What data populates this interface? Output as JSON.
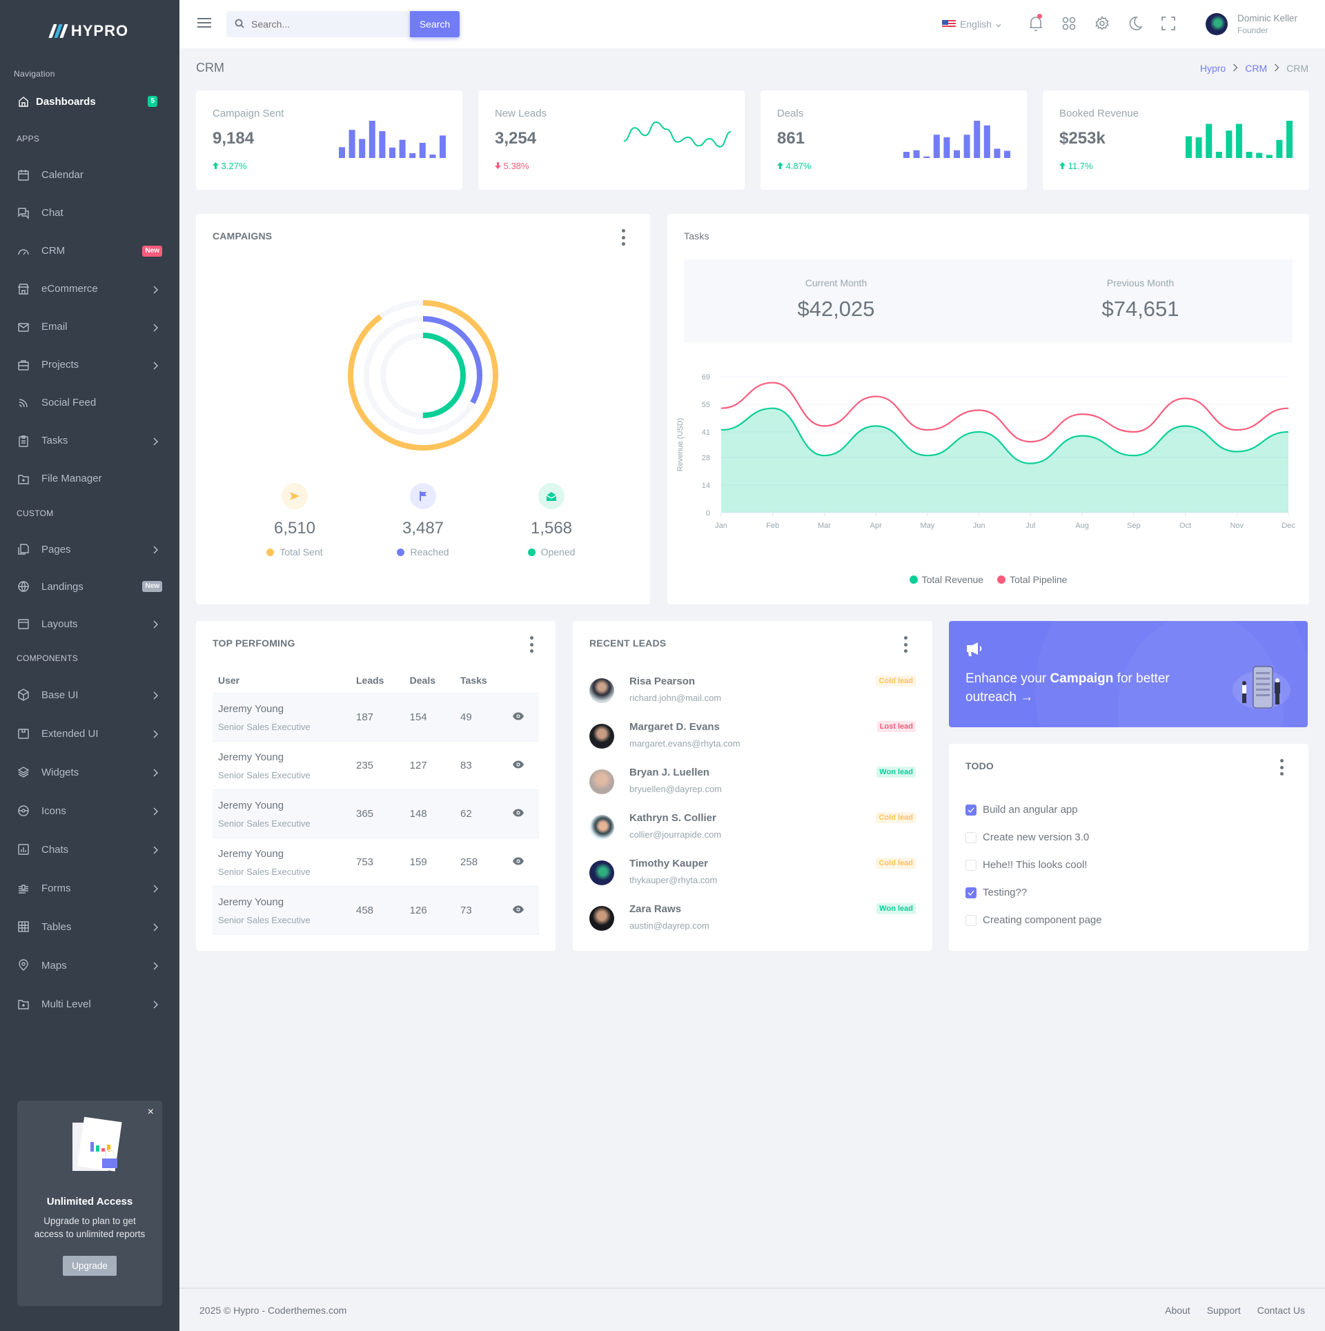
{
  "brand": {
    "name": "HYPRO"
  },
  "sidebar": {
    "navigation_title": "Navigation",
    "dashboards": {
      "label": "Dashboards",
      "badge": "5"
    },
    "sections": [
      {
        "title": "APPS",
        "items": [
          {
            "label": "Calendar",
            "icon": "calendar-icon"
          },
          {
            "label": "Chat",
            "icon": "chat-icon"
          },
          {
            "label": "CRM",
            "icon": "gauge-icon",
            "badge": "New"
          },
          {
            "label": "eCommerce",
            "icon": "store-icon",
            "chevron": true
          },
          {
            "label": "Email",
            "icon": "mail-icon",
            "chevron": true
          },
          {
            "label": "Projects",
            "icon": "briefcase-icon",
            "chevron": true
          },
          {
            "label": "Social Feed",
            "icon": "rss-icon"
          },
          {
            "label": "Tasks",
            "icon": "clipboard-icon",
            "chevron": true
          },
          {
            "label": "File Manager",
            "icon": "folder-plus-icon"
          }
        ]
      },
      {
        "title": "CUSTOM",
        "items": [
          {
            "label": "Pages",
            "icon": "pages-icon",
            "chevron": true
          },
          {
            "label": "Landings",
            "icon": "globe-icon",
            "badge": "New"
          },
          {
            "label": "Layouts",
            "icon": "layout-icon",
            "chevron": true
          }
        ]
      },
      {
        "title": "COMPONENTS",
        "items": [
          {
            "label": "Base UI",
            "icon": "cube-icon",
            "chevron": true
          },
          {
            "label": "Extended UI",
            "icon": "package-icon",
            "chevron": true
          },
          {
            "label": "Widgets",
            "icon": "layers-icon",
            "chevron": true
          },
          {
            "label": "Icons",
            "icon": "steering-icon",
            "chevron": true
          },
          {
            "label": "Chats",
            "icon": "bar-chart-icon",
            "chevron": true
          },
          {
            "label": "Forms",
            "icon": "forms-icon",
            "chevron": true
          },
          {
            "label": "Tables",
            "icon": "table-icon",
            "chevron": true
          },
          {
            "label": "Maps",
            "icon": "map-pin-icon",
            "chevron": true
          },
          {
            "label": "Multi Level",
            "icon": "folder-plus-icon",
            "chevron": true
          }
        ]
      }
    ],
    "promo": {
      "title": "Unlimited Access",
      "text": "Upgrade to plan to get access to unlimited reports",
      "button": "Upgrade",
      "close": "×"
    }
  },
  "topbar": {
    "search_placeholder": "Search...",
    "search_button": "Search",
    "language": "English",
    "user": {
      "name": "Dominic Keller",
      "role": "Founder"
    }
  },
  "page": {
    "title": "CRM",
    "breadcrumb": [
      "Hypro",
      "CRM",
      "CRM"
    ]
  },
  "stats": [
    {
      "title": "Campaign Sent",
      "value": "9,184",
      "change": "3.27%",
      "direction": "up",
      "spark_type": "bar",
      "color": "#727cf5",
      "spark": [
        25,
        65,
        44,
        86,
        62,
        24,
        42,
        11,
        35,
        8,
        52
      ]
    },
    {
      "title": "New Leads",
      "value": "3,254",
      "change": "5.38%",
      "direction": "down",
      "spark_type": "line",
      "color": "#0acf97",
      "spark": [
        30,
        58,
        42,
        70,
        55,
        28,
        38,
        20,
        35,
        18,
        50
      ]
    },
    {
      "title": "Deals",
      "value": "861",
      "change": "4.87%",
      "direction": "up",
      "spark_type": "bar",
      "color": "#727cf5",
      "spark": [
        12,
        15,
        3,
        45,
        40,
        15,
        45,
        72,
        63,
        18,
        14
      ]
    },
    {
      "title": "Booked Revenue",
      "value": "$253k",
      "change": "11.7%",
      "direction": "up",
      "spark_type": "bar",
      "color": "#0acf97",
      "spark": [
        42,
        40,
        66,
        12,
        53,
        66,
        12,
        10,
        6,
        35,
        72
      ]
    }
  ],
  "campaigns": {
    "title": "CAMPAIGNS",
    "items": [
      {
        "label": "Total Sent",
        "value": "6,510",
        "color": "#ffbc00",
        "bg": "#fff5e3",
        "icon": "send-icon",
        "ring_pct": 90
      },
      {
        "label": "Reached",
        "value": "3,487",
        "color": "#727cf5",
        "bg": "#e8eafe",
        "icon": "flag-icon",
        "ring_pct": 33
      },
      {
        "label": "Opened",
        "value": "1,568",
        "color": "#0acf97",
        "bg": "#dcf8ef",
        "icon": "mail-open-icon",
        "ring_pct": 50
      }
    ]
  },
  "tasks": {
    "title": "Tasks",
    "current_month_label": "Current Month",
    "current_month_value": "$42,025",
    "previous_month_label": "Previous Month",
    "previous_month_value": "$74,651"
  },
  "chart_data": {
    "type": "area",
    "title": "Tasks",
    "xlabel": "",
    "ylabel": "Revenue (USD)",
    "categories": [
      "Jan",
      "Feb",
      "Mar",
      "Apr",
      "May",
      "Jun",
      "Jul",
      "Aug",
      "Sep",
      "Oct",
      "Nov",
      "Dec"
    ],
    "yticks": [
      0,
      14,
      28,
      41,
      55,
      69
    ],
    "ylim": [
      0,
      69
    ],
    "grid": true,
    "legend_position": "bottom",
    "series": [
      {
        "name": "Total Revenue",
        "color": "#0acf97",
        "fill": true,
        "values": [
          42,
          53,
          29,
          44,
          29,
          41,
          25,
          39,
          29,
          44,
          31,
          41
        ]
      },
      {
        "name": "Total Pipeline",
        "color": "#fa5c7c",
        "fill": false,
        "values": [
          53,
          66,
          44,
          59,
          42,
          52,
          36,
          50,
          41,
          58,
          42,
          53
        ]
      }
    ]
  },
  "top_performing": {
    "title": "TOP PERFOMING",
    "columns": [
      "User",
      "Leads",
      "Deals",
      "Tasks"
    ],
    "rows": [
      {
        "name": "Jeremy Young",
        "role": "Senior Sales Executive",
        "leads": "187",
        "deals": "154",
        "tasks": "49"
      },
      {
        "name": "Jeremy Young",
        "role": "Senior Sales Executive",
        "leads": "235",
        "deals": "127",
        "tasks": "83"
      },
      {
        "name": "Jeremy Young",
        "role": "Senior Sales Executive",
        "leads": "365",
        "deals": "148",
        "tasks": "62"
      },
      {
        "name": "Jeremy Young",
        "role": "Senior Sales Executive",
        "leads": "753",
        "deals": "159",
        "tasks": "258"
      },
      {
        "name": "Jeremy Young",
        "role": "Senior Sales Executive",
        "leads": "458",
        "deals": "126",
        "tasks": "73"
      }
    ]
  },
  "recent_leads": {
    "title": "RECENT LEADS",
    "items": [
      {
        "name": "Risa Pearson",
        "email": "richard.john@mail.com",
        "status": "Cold lead",
        "kind": "cold"
      },
      {
        "name": "Margaret D. Evans",
        "email": "margaret.evans@rhyta.com",
        "status": "Lost lead",
        "kind": "lost"
      },
      {
        "name": "Bryan J. Luellen",
        "email": "bryuellen@dayrep.com",
        "status": "Won lead",
        "kind": "won"
      },
      {
        "name": "Kathryn S. Collier",
        "email": "collier@jourrapide.com",
        "status": "Cold lead",
        "kind": "cold"
      },
      {
        "name": "Timothy Kauper",
        "email": "thykauper@rhyta.com",
        "status": "Cold lead",
        "kind": "cold"
      },
      {
        "name": "Zara Raws",
        "email": "austin@dayrep.com",
        "status": "Won lead",
        "kind": "won"
      }
    ]
  },
  "banner": {
    "pre": "Enhance your ",
    "bold": "Campaign",
    "post": " for better outreach →"
  },
  "todo": {
    "title": "TODO",
    "items": [
      {
        "label": "Build an angular app",
        "checked": true
      },
      {
        "label": "Create new version 3.0",
        "checked": false
      },
      {
        "label": "Hehe!! This looks cool!",
        "checked": false
      },
      {
        "label": "Testing??",
        "checked": true
      },
      {
        "label": "Creating component page",
        "checked": false
      }
    ]
  },
  "footer": {
    "copyright": "2025 © Hypro - Coderthemes.com",
    "links": [
      "About",
      "Support",
      "Contact Us"
    ]
  }
}
